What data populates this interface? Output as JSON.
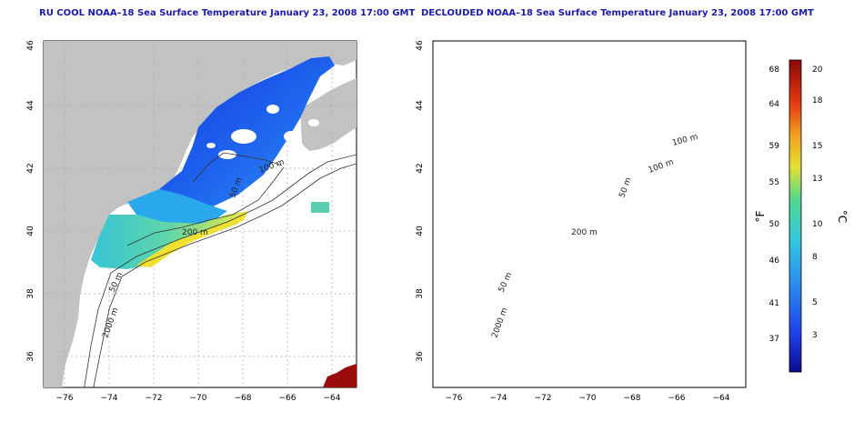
{
  "panels": [
    {
      "title": "RU COOL NOAA–18 Sea Surface Temperature January 23, 2008 17:00 GMT",
      "contour_labels": [
        "100 m",
        "50 m",
        "200 m",
        "50 m",
        "2000 m"
      ]
    },
    {
      "title": "DECLOUDED NOAA–18 Sea Surface Temperature January 23, 2008 17:00 GMT",
      "contour_labels": [
        "100 m",
        "50 m",
        "200 m",
        "50 m",
        "2000 m",
        "100 m"
      ]
    }
  ],
  "axes": {
    "x_ticks": [
      "−76",
      "−74",
      "−72",
      "−70",
      "−68",
      "−66",
      "−64"
    ],
    "y_ticks": [
      "46",
      "44",
      "42",
      "40",
      "38",
      "36"
    ]
  },
  "colorbar": {
    "f_label": "°F",
    "c_label": "°C",
    "f_ticks": [
      "68",
      "64",
      "59",
      "55",
      "50",
      "46",
      "41",
      "37"
    ],
    "c_ticks": [
      "20",
      "18",
      "15",
      "13",
      "10",
      "8",
      "5",
      "3"
    ]
  },
  "colors": {
    "land": "#c2c2c2",
    "ocean_nodata": "#ffffff",
    "cold": "#1a3fe0",
    "mid": "#2fc4d8",
    "warm": "#e8e030",
    "hot": "#a01010",
    "title": "#1a1aa8"
  }
}
